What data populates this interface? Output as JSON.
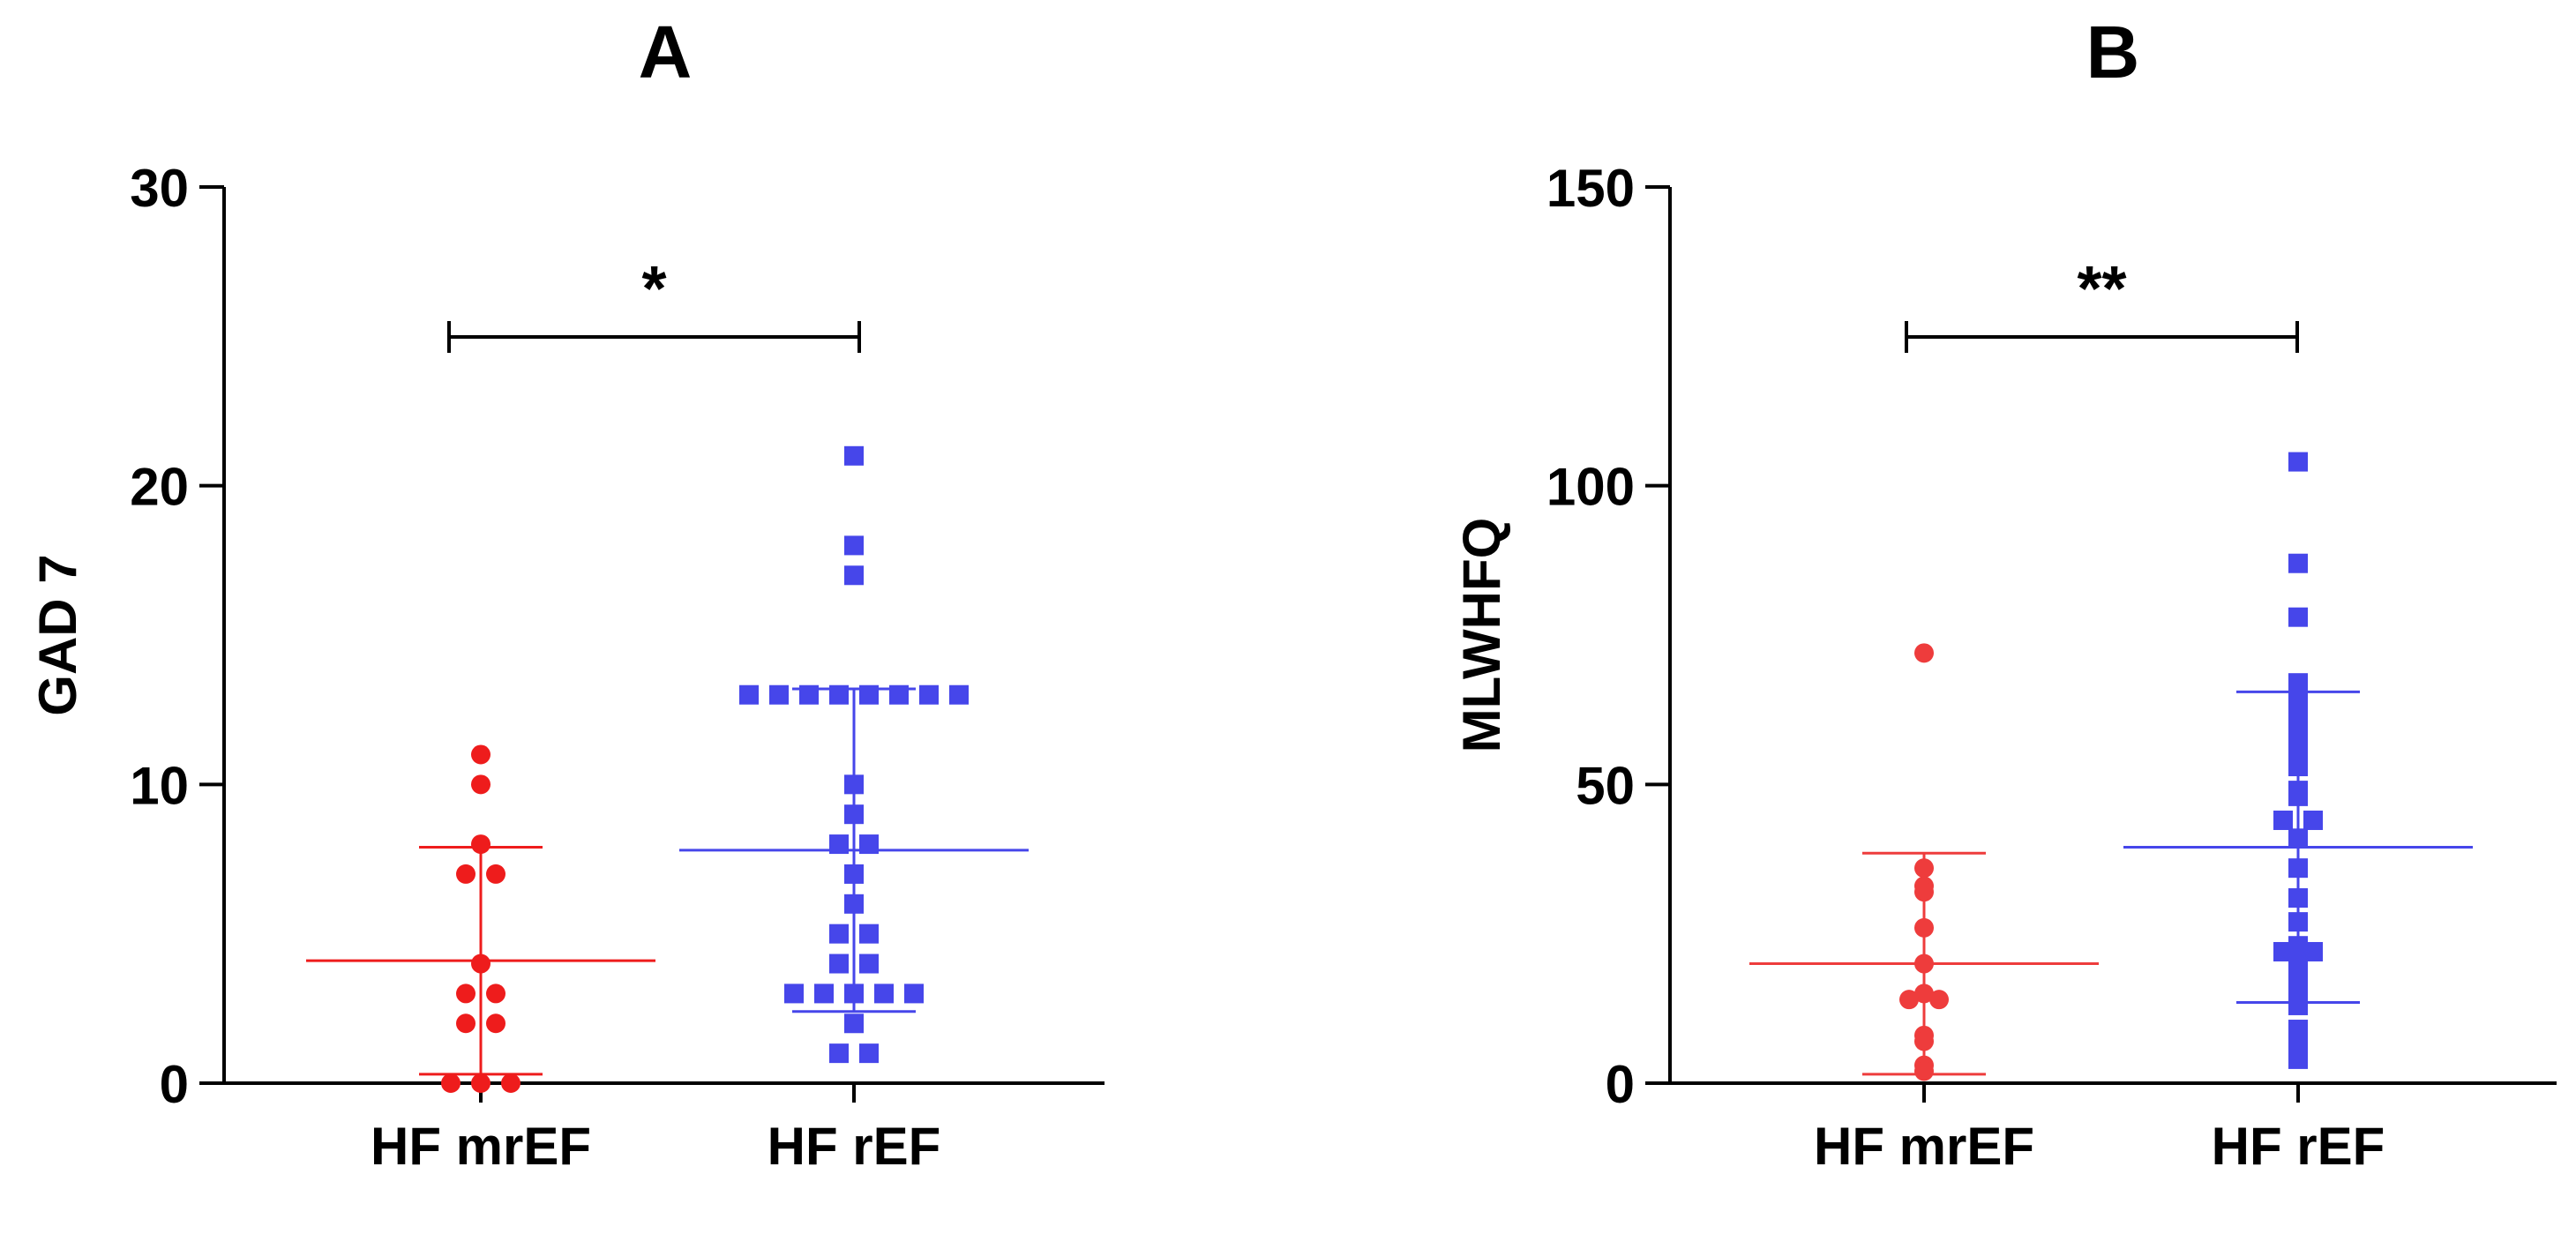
{
  "chart_data": [
    {
      "type": "scatter",
      "panel_label": "A",
      "title": "A",
      "xlabel": "",
      "ylabel": "GAD 7",
      "ylim": [
        0,
        30
      ],
      "yticks": [
        0,
        10,
        20,
        30
      ],
      "categories": [
        "HF mrEF",
        "HF rEF"
      ],
      "significance": "*",
      "grid": false,
      "colors": {
        "HF mrEF": "#ee1c1c",
        "HF rEF": "#4646ea"
      },
      "series": [
        {
          "name": "HF mrEF",
          "marker": "circle",
          "color": "#ee1c1c",
          "values": [
            11,
            10,
            8,
            7,
            7,
            4,
            3,
            3,
            2,
            2,
            0,
            0,
            0
          ],
          "mean": 4.1,
          "sd_low": 0.3,
          "sd_high": 7.9
        },
        {
          "name": "HF rEF",
          "marker": "square",
          "color": "#4646ea",
          "values": [
            21,
            18,
            17,
            13,
            13,
            13,
            13,
            13,
            13,
            13,
            13,
            10,
            9,
            8,
            8,
            7,
            6,
            5,
            5,
            4,
            4,
            3,
            3,
            3,
            3,
            3,
            2,
            1,
            1
          ],
          "mean": 7.8,
          "sd_low": 2.4,
          "sd_high": 13.2
        }
      ]
    },
    {
      "type": "scatter",
      "panel_label": "B",
      "title": "B",
      "xlabel": "",
      "ylabel": "MLWHFQ",
      "ylim": [
        0,
        150
      ],
      "yticks": [
        0,
        50,
        100,
        150
      ],
      "categories": [
        "HF mrEF",
        "HF rEF"
      ],
      "significance": "**",
      "grid": false,
      "colors": {
        "HF mrEF": "#ee3c3c",
        "HF rEF": "#4646ea"
      },
      "series": [
        {
          "name": "HF mrEF",
          "marker": "circle",
          "color": "#ee3c3c",
          "values": [
            72,
            36,
            33,
            32,
            26,
            20,
            15,
            14,
            14,
            8,
            7,
            3,
            2
          ],
          "mean": 20,
          "sd_low": 1.5,
          "sd_high": 38.5
        },
        {
          "name": "HF rEF",
          "marker": "square",
          "color": "#4646ea",
          "values": [
            104,
            87,
            78,
            67,
            65,
            62,
            59,
            58,
            55,
            53,
            49,
            48,
            44,
            44,
            41,
            36,
            31,
            27,
            23,
            22,
            22,
            21,
            18,
            16,
            15,
            13,
            9,
            7,
            4
          ],
          "mean": 39.5,
          "sd_low": 13.5,
          "sd_high": 65.5
        }
      ]
    }
  ]
}
